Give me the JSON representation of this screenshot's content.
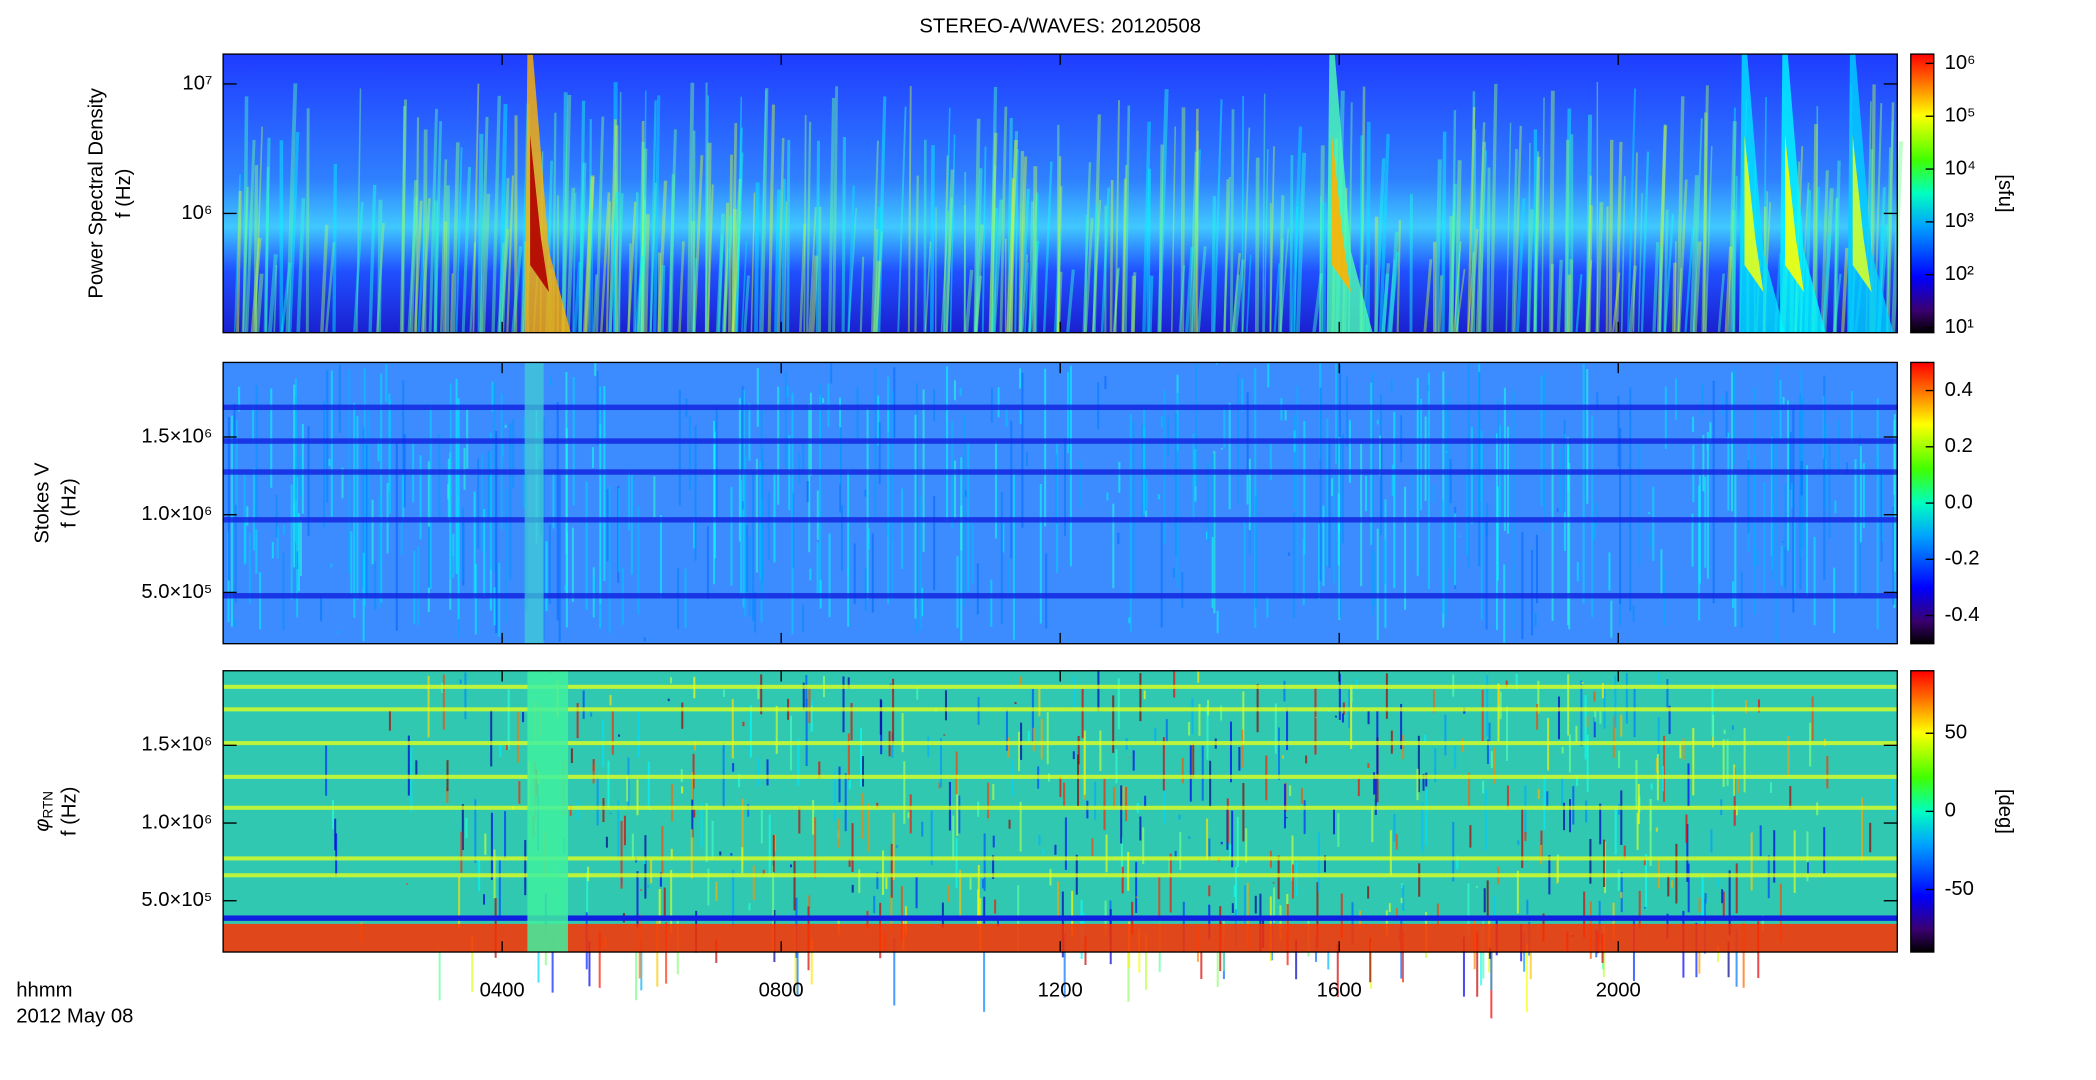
{
  "chart_data": [
    {
      "type": "spectrogram",
      "title": "STEREO-A/WAVES: 20120508",
      "ylabel": [
        "Power Spectral Density",
        "f (Hz)"
      ],
      "ylog": true,
      "ylim": [
        120000,
        17000000
      ],
      "yticks": [
        {
          "value": 1000000,
          "label": "10⁶"
        },
        {
          "value": 10000000,
          "label": "10⁷"
        }
      ],
      "xlim": [
        0,
        24
      ],
      "colorbar": {
        "log": true,
        "lim": [
          8,
          1500000
        ],
        "label": "[sfu]",
        "ticks": [
          {
            "value": 10,
            "label": "10¹"
          },
          {
            "value": 100,
            "label": "10²"
          },
          {
            "value": 1000,
            "label": "10³"
          },
          {
            "value": 10000,
            "label": "10⁴"
          },
          {
            "value": 100000,
            "label": "10⁵"
          },
          {
            "value": 1000000,
            "label": "10⁶"
          }
        ]
      }
    },
    {
      "type": "spectrogram",
      "ylabel": [
        "Stokes V",
        "f (Hz)"
      ],
      "ylog": false,
      "ylim": [
        170000,
        1980000
      ],
      "yticks": [
        {
          "value": 500000,
          "label": "5.0×10⁵"
        },
        {
          "value": 1000000,
          "label": "1.0×10⁶"
        },
        {
          "value": 1500000,
          "label": "1.5×10⁶"
        }
      ],
      "xlim": [
        0,
        24
      ],
      "colorbar": {
        "log": false,
        "lim": [
          -0.5,
          0.5
        ],
        "ticks": [
          -0.4,
          -0.2,
          {
            "value": 0,
            "label": "0.0"
          },
          0.2,
          0.4
        ]
      }
    },
    {
      "type": "spectrogram",
      "ylabel": [
        "φ",
        "RTN",
        "f (Hz)"
      ],
      "ylog": false,
      "ylim": [
        170000,
        1980000
      ],
      "yticks": [
        {
          "value": 500000,
          "label": "5.0×10⁵"
        },
        {
          "value": 1000000,
          "label": "1.0×10⁶"
        },
        {
          "value": 1500000,
          "label": "1.5×10⁶"
        }
      ],
      "xlim": [
        0,
        24
      ],
      "xticks": [
        {
          "value": 4,
          "label": "0400"
        },
        {
          "value": 8,
          "label": "0800"
        },
        {
          "value": 12,
          "label": "1200"
        },
        {
          "value": 16,
          "label": "1600"
        },
        {
          "value": 20,
          "label": "2000"
        }
      ],
      "xlabel": [
        "hhmm",
        "2012 May 08"
      ],
      "colorbar": {
        "log": false,
        "lim": [
          -90,
          90
        ],
        "label": "[deg]",
        "ticks": [
          -50,
          0,
          50
        ]
      }
    }
  ]
}
